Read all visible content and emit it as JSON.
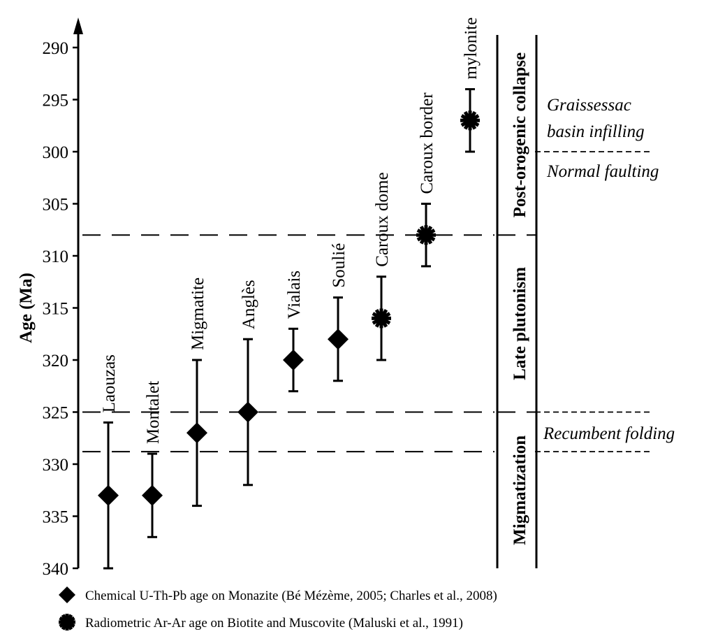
{
  "chart_data": {
    "type": "scatter",
    "ylabel": "Age (Ma)",
    "y_ticks": [
      "290",
      "295",
      "300",
      "305",
      "310",
      "315",
      "320",
      "325",
      "330",
      "335",
      "340"
    ],
    "ylim": [
      288,
      340
    ],
    "y_inverted": true,
    "points": [
      {
        "label": "Laouzas",
        "age": 333,
        "min": 326,
        "max": 340,
        "method": "monazite"
      },
      {
        "label": "Montalet",
        "age": 333,
        "min": 329,
        "max": 337,
        "method": "monazite"
      },
      {
        "label": "Migmatite",
        "age": 327,
        "min": 320,
        "max": 334,
        "method": "monazite"
      },
      {
        "label": "Anglès",
        "age": 325,
        "min": 318,
        "max": 332,
        "method": "monazite"
      },
      {
        "label": "Vialais",
        "age": 320,
        "min": 317,
        "max": 323,
        "method": "monazite"
      },
      {
        "label": "Soulié",
        "age": 318,
        "min": 314,
        "max": 322,
        "method": "monazite"
      },
      {
        "label": "Caroux dome",
        "age": 316,
        "min": 312,
        "max": 320,
        "method": "ar-ar"
      },
      {
        "label": "Caroux border",
        "age": 308,
        "min": 305,
        "max": 311,
        "method": "ar-ar"
      },
      {
        "label": "mylonite",
        "age": 297,
        "min": 294,
        "max": 300,
        "method": "ar-ar"
      }
    ],
    "boundaries": [
      {
        "age": 308,
        "style": "long-dash"
      },
      {
        "age": 325,
        "style": "long-dash"
      },
      {
        "age": 328.8,
        "style": "long-dash"
      }
    ],
    "phases": [
      {
        "label": "Post-orogenic collapse",
        "from": 288,
        "to": 308
      },
      {
        "label": "Late plutonism",
        "from": 308,
        "to": 325
      },
      {
        "label": "Migmatization",
        "from": 325,
        "to": 340
      }
    ],
    "events": [
      {
        "lines": [
          "Graissessac",
          "basin infilling"
        ],
        "anchor_age": 297
      },
      {
        "lines": [
          "Normal faulting"
        ],
        "anchor_age": 301.6
      },
      {
        "lines": [
          "Recumbent folding"
        ],
        "anchor_age": 327
      }
    ],
    "event_dividers": [
      300,
      325,
      328.8
    ],
    "legend": [
      {
        "symbol": "diamond",
        "label": "Chemical U-Th-Pb age on Monazite (Bé Mézème, 2005; Charles et al., 2008)"
      },
      {
        "symbol": "asterisk",
        "label": "Radiometric Ar-Ar age on Biotite and Muscovite (Maluski et al., 1991)"
      }
    ],
    "colors": {
      "ink": "#000000",
      "background": "#ffffff"
    }
  }
}
